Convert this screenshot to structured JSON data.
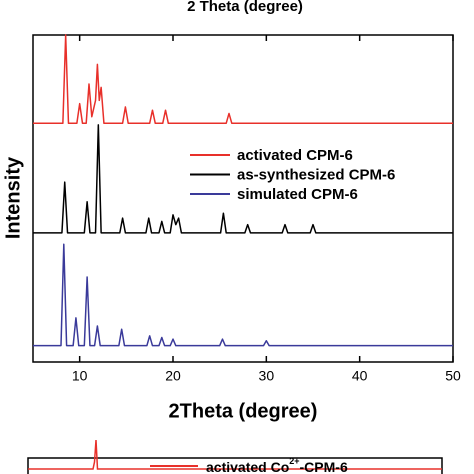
{
  "chart_data": {
    "type": "line",
    "cropped_top_label": "2 Theta (degree)",
    "x_label": "2Theta (degree)",
    "y_label": "Intensity",
    "xlim": [
      5,
      50
    ],
    "xticks": [
      10,
      20,
      30,
      40,
      50
    ],
    "ylim": [
      0,
      100
    ],
    "legend": "center",
    "series": [
      {
        "name": "activated CPM-6",
        "color": "#e8302a",
        "x": [
          5,
          8.2,
          8.5,
          8.8,
          9.7,
          10,
          10.3,
          10.7,
          11,
          11.3,
          11.7,
          11.9,
          12.1,
          12.3,
          12.6,
          14.6,
          14.9,
          15.2,
          17.5,
          17.8,
          18.1,
          18.9,
          19.2,
          19.5,
          25.7,
          26,
          26.3,
          50
        ],
        "values": [
          73,
          73,
          100,
          73,
          73,
          79,
          73,
          73,
          85,
          75,
          80,
          91,
          80,
          84,
          73,
          73,
          78,
          73,
          73,
          77,
          73,
          73,
          77,
          73,
          73,
          76,
          73,
          73
        ]
      },
      {
        "name": "as-synthesized CPM-6",
        "color": "#000000",
        "x": [
          5,
          8.1,
          8.4,
          8.7,
          10.5,
          10.8,
          11.1,
          11.7,
          12,
          12.3,
          14.3,
          14.6,
          14.9,
          17.1,
          17.4,
          17.7,
          18.5,
          18.8,
          19.1,
          19.7,
          20,
          20.3,
          20.6,
          20.9,
          25.1,
          25.4,
          25.7,
          27.7,
          28,
          28.3,
          31.7,
          32,
          32.3,
          34.7,
          35,
          35.3,
          50
        ],
        "values": [
          39.5,
          39.5,
          55,
          39.5,
          39.5,
          49,
          39.5,
          39.5,
          72.5,
          39.5,
          39.5,
          44,
          39.5,
          39.5,
          44,
          39.5,
          39.5,
          43,
          39.5,
          39.5,
          45,
          42,
          44,
          39.5,
          39.5,
          45.5,
          39.5,
          39.5,
          42,
          39.5,
          39.5,
          42,
          39.5,
          39.5,
          42,
          39.5,
          39.5
        ]
      },
      {
        "name": "simulated CPM-6",
        "color": "#3a3a9a",
        "x": [
          5,
          8,
          8.3,
          8.6,
          9.3,
          9.6,
          9.9,
          10.5,
          10.8,
          11.1,
          11.6,
          11.9,
          12.2,
          14.2,
          14.5,
          14.8,
          17.2,
          17.5,
          17.8,
          18.5,
          18.8,
          19.1,
          19.7,
          20,
          20.3,
          25,
          25.3,
          25.6,
          29.7,
          30,
          30.3,
          50
        ],
        "values": [
          5,
          5,
          36,
          5,
          5,
          13.5,
          5,
          5,
          26,
          5,
          5,
          11,
          5,
          5,
          10,
          5,
          5,
          8,
          5,
          5,
          7.5,
          5,
          5,
          7,
          5,
          5,
          7,
          5,
          5,
          6.5,
          5,
          5
        ]
      }
    ],
    "cropped_bottom_panel": {
      "legend_parts": [
        "activated Co",
        "2+",
        "-CPM-6"
      ],
      "color": "#e8302a"
    }
  }
}
